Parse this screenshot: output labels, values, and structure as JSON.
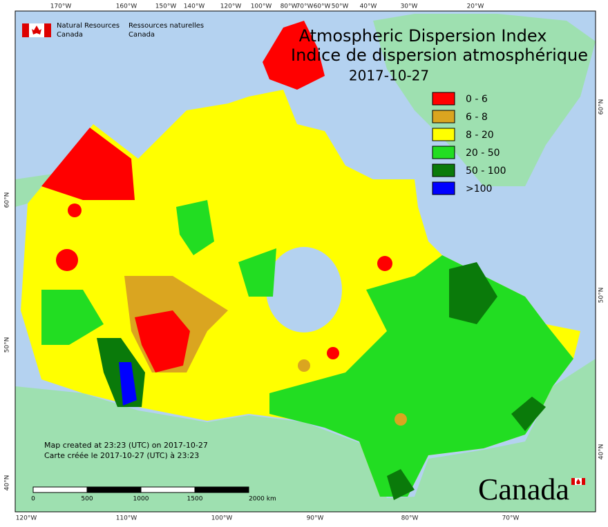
{
  "header": {
    "title": "Atmospheric Dispersion Index",
    "title_fr": "Indice de dispersion atmosphérique",
    "date": "2017-10-27"
  },
  "credit": {
    "en_line1": "Natural Resources",
    "en_line2": "Canada",
    "fr_line1": "Ressources naturelles",
    "fr_line2": "Canada"
  },
  "legend": [
    {
      "label": "0 - 6",
      "color": "#ff0000"
    },
    {
      "label": "6 - 8",
      "color": "#daa520"
    },
    {
      "label": "8 - 20",
      "color": "#ffff00"
    },
    {
      "label": "20 - 50",
      "color": "#22dd22"
    },
    {
      "label": "50 - 100",
      "color": "#0a7a0a"
    },
    {
      "label": ">100",
      "color": "#0000ff"
    }
  ],
  "notes": {
    "created_en": "Map created at 23:23 (UTC) on 2017-10-27",
    "created_fr": "Carte créée le 2017-10-27 (UTC) à 23:23"
  },
  "scale_bar": [
    "0",
    "500",
    "1000",
    "1500",
    "2000 km"
  ],
  "wordmark": "Canada",
  "graticule": {
    "top": [
      "170°W",
      "160°W",
      "150°W",
      "140°W",
      "120°W",
      "100°W",
      "80°W",
      "70°W",
      "60°W",
      "50°W",
      "40°W",
      "30°W",
      "20°W"
    ],
    "bottom": [
      "120°W",
      "110°W",
      "100°W",
      "90°W",
      "80°W",
      "70°W"
    ],
    "left": [
      "60°N",
      "50°N",
      "40°N"
    ],
    "right": [
      "60°N",
      "50°N",
      "40°N"
    ]
  }
}
